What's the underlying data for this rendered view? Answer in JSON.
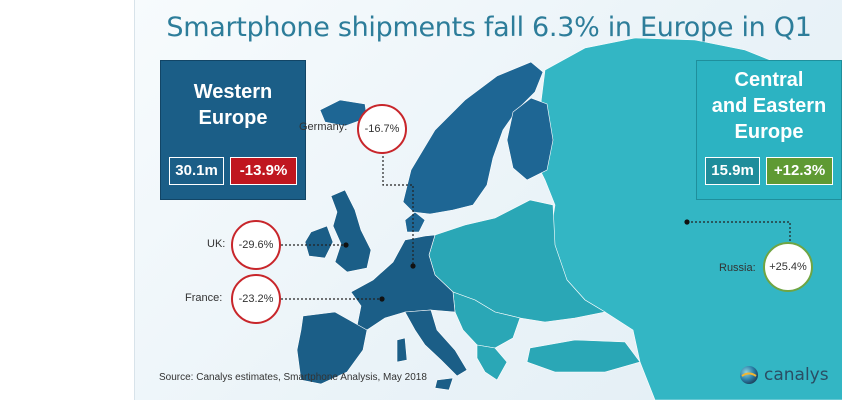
{
  "title": "Smartphone shipments fall 6.3% in Europe in Q1",
  "western": {
    "name_line1": "Western",
    "name_line2": "Europe",
    "volume": "30.1m",
    "change": "-13.9%"
  },
  "eastern": {
    "name_line1": "Central",
    "name_line2": "and Eastern",
    "name_line3": "Europe",
    "volume": "15.9m",
    "change": "+12.3%"
  },
  "countries": {
    "germany": {
      "label": "Germany:",
      "value": "-16.7%"
    },
    "uk": {
      "label": "UK:",
      "value": "-29.6%"
    },
    "france": {
      "label": "France:",
      "value": "-23.2%"
    },
    "russia": {
      "label": "Russia:",
      "value": "+25.4%"
    }
  },
  "source": "Source: Canalys estimates, Smartphone Analysis, May 2018",
  "logo": {
    "name": "canalys",
    "icon": "globe-icon"
  },
  "colors": {
    "western": "#1b5e87",
    "eastern": "#2cb3c2",
    "decline": "#c0161f",
    "growth": "#5f9a33",
    "title": "#2d7d9a"
  }
}
